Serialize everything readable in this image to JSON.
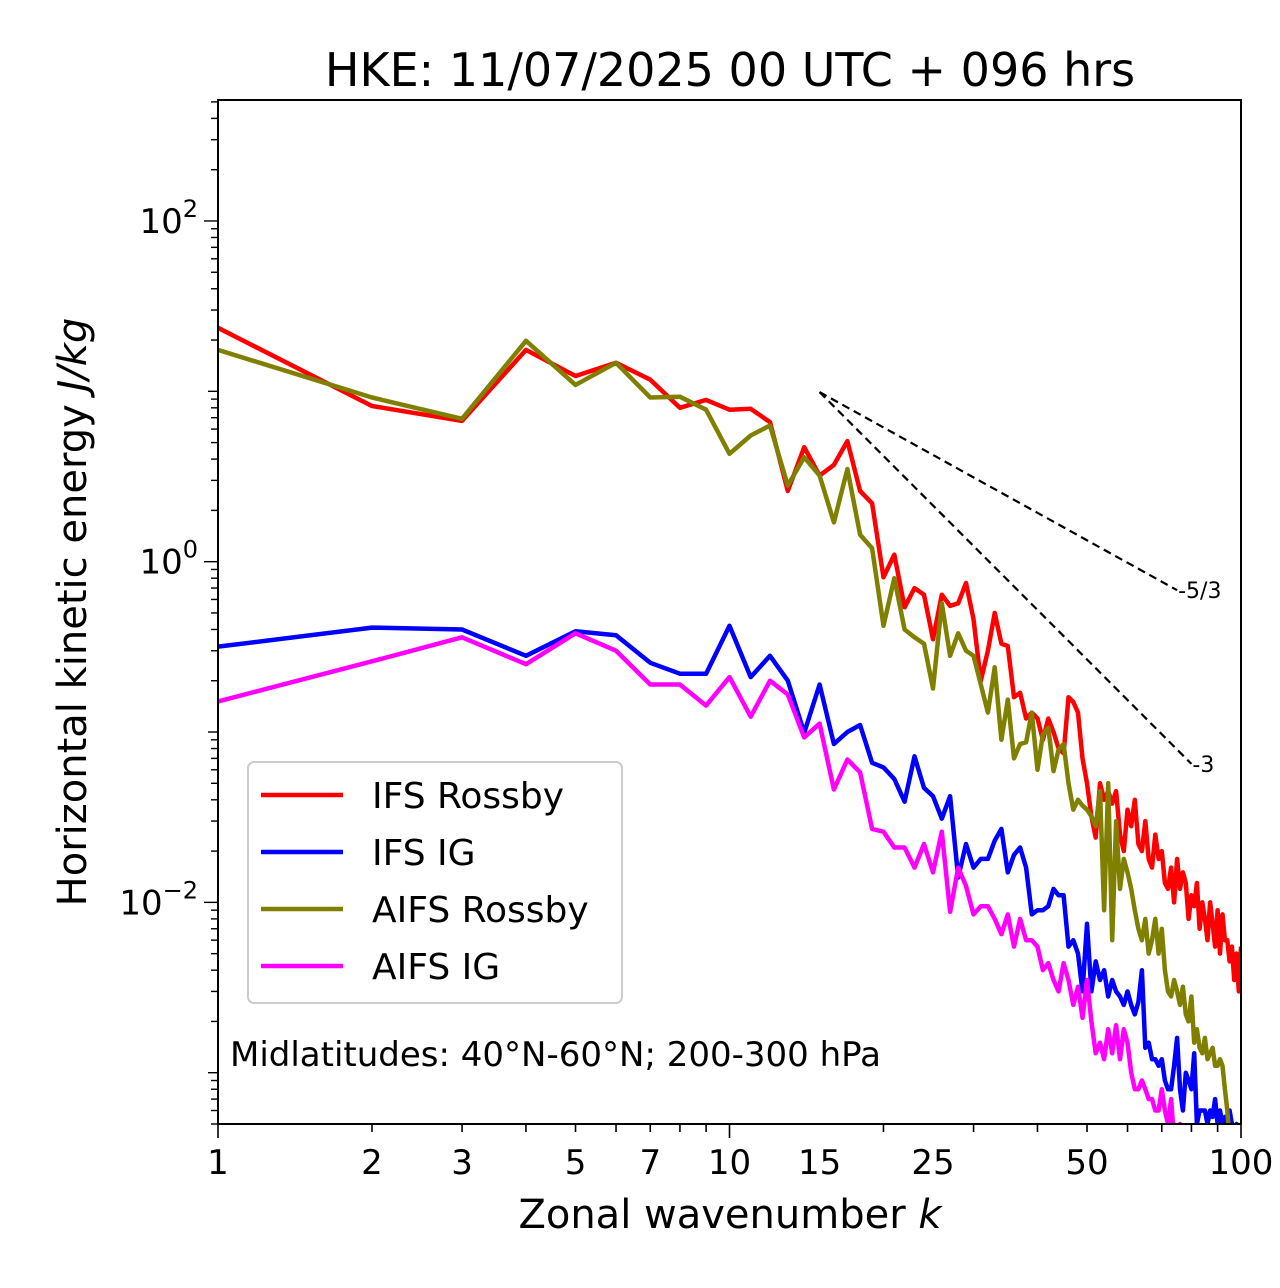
{
  "chart_data": {
    "type": "line",
    "title": "HKE: 11/07/2025 00 UTC + 096 hrs",
    "xlabel": "Zonal wavenumber",
    "xlabel_var": "k",
    "ylabel": "Horizontal kinetic energy",
    "ylabel_unit": "J/kg",
    "xscale": "log",
    "yscale": "log",
    "xlim": [
      1,
      100
    ],
    "ylim": [
      0.0005,
      513
    ],
    "xticks": [
      1,
      2,
      3,
      5,
      7,
      10,
      15,
      25,
      50,
      100
    ],
    "yticks": [
      {
        "value": 100,
        "base": "10",
        "exp": "2"
      },
      {
        "value": 1,
        "base": "10",
        "exp": "0"
      },
      {
        "value": 0.01,
        "base": "10",
        "exp": "−2"
      }
    ],
    "grid": false,
    "legend_position": "center-left",
    "annotation": "Midlatitudes: 40°N-60°N; 200-300 hPa",
    "series": [
      {
        "name": "IFS Rossby",
        "color": "#ff0000",
        "values": [
          23.6,
          8.2,
          6.7,
          17.5,
          12.3,
          14.7,
          11.7,
          8.0,
          8.9,
          7.8,
          7.9,
          6.6,
          2.6,
          4.7,
          3.2,
          3.7,
          5.1,
          2.6,
          2.2,
          0.81,
          1.1,
          0.54,
          0.7,
          0.64,
          0.35,
          0.64,
          0.55,
          0.57,
          0.75,
          0.46,
          0.2,
          0.3,
          0.5,
          0.33,
          0.32,
          0.16,
          0.17,
          0.12,
          0.13,
          0.12,
          0.09,
          0.12,
          0.1,
          0.08,
          0.075,
          0.16,
          0.15,
          0.13,
          0.07,
          0.05,
          0.032,
          0.024,
          0.05,
          0.04,
          0.045,
          0.038,
          0.045,
          0.025,
          0.02,
          0.035,
          0.028,
          0.04,
          0.022,
          0.02,
          0.03,
          0.018,
          0.016,
          0.025,
          0.018,
          0.02,
          0.013,
          0.012,
          0.016,
          0.01,
          0.018,
          0.012,
          0.015,
          0.013,
          0.008,
          0.011,
          0.0095,
          0.013,
          0.007,
          0.01,
          0.008,
          0.006,
          0.01,
          0.0075,
          0.0055,
          0.009,
          0.005,
          0.0085,
          0.006,
          0.006,
          0.0045,
          0.0055,
          0.0035,
          0.005,
          0.003,
          0.0055
        ]
      },
      {
        "name": "IFS IG",
        "color": "#0000ff",
        "values": [
          0.317,
          0.41,
          0.4,
          0.28,
          0.39,
          0.37,
          0.255,
          0.22,
          0.22,
          0.42,
          0.21,
          0.28,
          0.2,
          0.099,
          0.19,
          0.085,
          0.1,
          0.11,
          0.066,
          0.062,
          0.053,
          0.039,
          0.072,
          0.047,
          0.042,
          0.031,
          0.042,
          0.014,
          0.022,
          0.016,
          0.018,
          0.018,
          0.023,
          0.027,
          0.015,
          0.019,
          0.021,
          0.016,
          0.0085,
          0.009,
          0.009,
          0.0095,
          0.012,
          0.011,
          0.011,
          0.0055,
          0.006,
          0.005,
          0.003,
          0.0075,
          0.003,
          0.0045,
          0.0035,
          0.004,
          0.0028,
          0.0035,
          0.003,
          0.0028,
          0.0025,
          0.003,
          0.0025,
          0.0022,
          0.0026,
          0.004,
          0.0014,
          0.0015,
          0.0012,
          0.0012,
          0.0011,
          0.0012,
          0.0009,
          0.0008,
          0.0008,
          0.0011,
          0.0016,
          0.0008,
          0.0006,
          0.001,
          0.0009,
          0.0008,
          0.0013,
          0.0005,
          0.0006,
          0.0006,
          0.0006,
          0.0005,
          0.0006,
          0.00055,
          0.0007,
          0.0005,
          0.0006,
          0.0005,
          0.00055,
          0.0005,
          0.0006,
          0.0005,
          0.0004,
          0.0005,
          0.0004,
          0.0005
        ]
      },
      {
        "name": "AIFS Rossby",
        "color": "#808000",
        "values": [
          17.5,
          9.2,
          6.9,
          19.8,
          10.9,
          14.7,
          9.2,
          9.3,
          7.8,
          4.3,
          5.5,
          6.3,
          2.8,
          4.1,
          3.2,
          1.7,
          3.5,
          1.44,
          1.2,
          0.42,
          0.8,
          0.4,
          0.36,
          0.33,
          0.18,
          0.57,
          0.28,
          0.38,
          0.3,
          0.28,
          0.19,
          0.13,
          0.24,
          0.09,
          0.155,
          0.07,
          0.085,
          0.087,
          0.13,
          0.06,
          0.097,
          0.106,
          0.059,
          0.079,
          0.085,
          0.05,
          0.035,
          0.04,
          0.037,
          0.035,
          0.032,
          0.028,
          0.045,
          0.009,
          0.05,
          0.006,
          0.03,
          0.012,
          0.018,
          0.015,
          0.012,
          0.009,
          0.007,
          0.006,
          0.008,
          0.005,
          0.006,
          0.008,
          0.005,
          0.007,
          0.004,
          0.003,
          0.0028,
          0.0035,
          0.003,
          0.0025,
          0.0032,
          0.0022,
          0.002,
          0.0028,
          0.0015,
          0.0018,
          0.0014,
          0.0013,
          0.0016,
          0.0012,
          0.0013,
          0.0014,
          0.0011,
          0.0011,
          0.0012,
          0.0011,
          0.0008,
          0.0006,
          0.0004
        ]
      },
      {
        "name": "AIFS IG",
        "color": "#ff00ff",
        "values": [
          0.151,
          0.26,
          0.36,
          0.25,
          0.38,
          0.3,
          0.19,
          0.19,
          0.143,
          0.21,
          0.123,
          0.2,
          0.166,
          0.093,
          0.112,
          0.046,
          0.069,
          0.058,
          0.027,
          0.026,
          0.021,
          0.021,
          0.016,
          0.022,
          0.015,
          0.026,
          0.0088,
          0.016,
          0.0125,
          0.0085,
          0.0095,
          0.0095,
          0.008,
          0.0065,
          0.0085,
          0.0055,
          0.008,
          0.006,
          0.006,
          0.0055,
          0.004,
          0.0044,
          0.0035,
          0.003,
          0.0044,
          0.0035,
          0.0025,
          0.0032,
          0.0021,
          0.0035,
          0.002,
          0.0013,
          0.0015,
          0.0012,
          0.0018,
          0.0013,
          0.0019,
          0.0012,
          0.0018,
          0.0015,
          0.001,
          0.0008,
          0.0008,
          0.0009,
          0.0008,
          0.0007,
          0.0007,
          0.0006,
          0.0006,
          0.0008,
          0.0006,
          0.0005,
          0.0007,
          0.0004,
          0.0004,
          0.0005,
          0.0004
        ]
      }
    ],
    "reference_lines": [
      {
        "label": "-5/3",
        "slope": -1.6667,
        "x": [
          15,
          75
        ],
        "y": [
          9.9,
          0.68
        ]
      },
      {
        "label": "-3",
        "slope": -3,
        "x": [
          15,
          80
        ],
        "y": [
          9.9,
          0.065
        ]
      }
    ]
  }
}
